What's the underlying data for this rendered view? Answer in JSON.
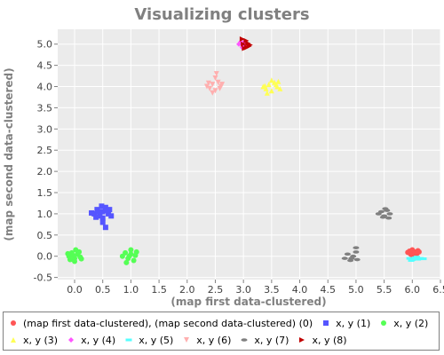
{
  "chart_data": {
    "type": "scatter",
    "title": "Visualizing clusters",
    "xlabel": "(map first data-clustered)",
    "ylabel": "(map second data-clustered)",
    "xlim": [
      -0.3,
      6.5
    ],
    "ylim": [
      -0.55,
      5.35
    ],
    "xticks": [
      "0.0",
      "0.5",
      "1.0",
      "1.5",
      "2.0",
      "2.5",
      "3.0",
      "3.5",
      "4.0",
      "4.5",
      "5.0",
      "5.5",
      "6.0",
      "6.5"
    ],
    "yticks": [
      "-0.5",
      "0.0",
      "0.5",
      "1.0",
      "1.5",
      "2.0",
      "2.5",
      "3.0",
      "3.5",
      "4.0",
      "4.5",
      "5.0"
    ],
    "grid": true,
    "legend_position": "bottom",
    "series": [
      {
        "name": "(map first data-clustered), (map second data-clustered) (0)",
        "color": "#ff5555",
        "marker": "circle",
        "points": [
          [
            5.95,
            0.12
          ],
          [
            6.0,
            0.15
          ],
          [
            6.05,
            0.1
          ],
          [
            6.1,
            0.13
          ],
          [
            5.97,
            0.05
          ],
          [
            6.03,
            0.08
          ],
          [
            6.08,
            0.06
          ],
          [
            5.92,
            0.09
          ],
          [
            6.0,
            0.02
          ],
          [
            6.12,
            0.1
          ]
        ]
      },
      {
        "name": "x, y (1)",
        "color": "#5555ff",
        "marker": "square",
        "points": [
          [
            0.35,
            1.0
          ],
          [
            0.4,
            1.1
          ],
          [
            0.45,
            0.95
          ],
          [
            0.5,
            1.05
          ],
          [
            0.55,
            1.15
          ],
          [
            0.6,
            1.0
          ],
          [
            0.65,
            0.95
          ],
          [
            0.5,
            0.9
          ],
          [
            0.42,
            1.05
          ],
          [
            0.58,
            1.08
          ],
          [
            0.5,
            0.8
          ],
          [
            0.55,
            0.68
          ],
          [
            0.48,
            1.18
          ],
          [
            0.38,
            0.92
          ],
          [
            0.62,
            1.1
          ],
          [
            0.3,
            1.02
          ]
        ]
      },
      {
        "name": "x, y (2)",
        "color": "#55ff55",
        "marker": "circle",
        "points": [
          [
            -0.1,
            0.0
          ],
          [
            -0.05,
            0.08
          ],
          [
            0.0,
            -0.05
          ],
          [
            0.05,
            0.05
          ],
          [
            0.1,
            -0.02
          ],
          [
            -0.08,
            -0.08
          ],
          [
            0.02,
            0.15
          ],
          [
            0.0,
            -0.12
          ],
          [
            0.08,
            0.1
          ],
          [
            -0.03,
            0.02
          ],
          [
            0.85,
            0.0
          ],
          [
            0.9,
            0.08
          ],
          [
            0.95,
            -0.05
          ],
          [
            1.0,
            0.05
          ],
          [
            1.05,
            -0.1
          ],
          [
            1.1,
            0.1
          ],
          [
            0.92,
            -0.15
          ],
          [
            1.0,
            0.15
          ],
          [
            0.97,
            0.0
          ],
          [
            1.08,
            0.02
          ],
          [
            -0.12,
            0.06
          ],
          [
            0.12,
            -0.06
          ]
        ]
      },
      {
        "name": "x, y (3)",
        "color": "#ffff55",
        "marker": "triangle-up",
        "points": [
          [
            3.35,
            4.0
          ],
          [
            3.4,
            3.95
          ],
          [
            3.45,
            4.05
          ],
          [
            3.5,
            3.9
          ],
          [
            3.55,
            4.1
          ],
          [
            3.6,
            4.0
          ],
          [
            3.65,
            3.95
          ],
          [
            3.5,
            4.15
          ],
          [
            3.42,
            3.85
          ],
          [
            3.58,
            4.05
          ],
          [
            3.62,
            4.12
          ],
          [
            3.38,
            4.02
          ]
        ]
      },
      {
        "name": "x, y (4)",
        "color": "#ff55ff",
        "marker": "diamond",
        "points": [
          [
            2.95,
            5.05
          ],
          [
            3.0,
            4.95
          ],
          [
            3.05,
            4.98
          ],
          [
            2.92,
            5.0
          ],
          [
            3.02,
            5.06
          ],
          [
            2.98,
            4.92
          ]
        ]
      },
      {
        "name": "x, y (5)",
        "color": "#55ffff",
        "marker": "rect-h",
        "points": [
          [
            5.95,
            -0.05
          ],
          [
            6.0,
            -0.08
          ],
          [
            6.05,
            -0.04
          ],
          [
            6.1,
            -0.07
          ],
          [
            6.15,
            -0.05
          ],
          [
            5.98,
            -0.1
          ],
          [
            6.08,
            -0.02
          ],
          [
            6.2,
            -0.06
          ]
        ]
      },
      {
        "name": "x, y (6)",
        "color": "#ffafaf",
        "marker": "triangle-down",
        "points": [
          [
            2.35,
            4.0
          ],
          [
            2.4,
            3.95
          ],
          [
            2.45,
            4.05
          ],
          [
            2.5,
            3.9
          ],
          [
            2.55,
            4.1
          ],
          [
            2.6,
            4.0
          ],
          [
            2.5,
            4.2
          ],
          [
            2.45,
            3.85
          ],
          [
            2.38,
            4.08
          ],
          [
            2.58,
            3.95
          ],
          [
            2.52,
            4.3
          ],
          [
            2.62,
            4.05
          ]
        ]
      },
      {
        "name": "x, y (7)",
        "color": "#808080",
        "marker": "ellipse",
        "points": [
          [
            4.8,
            -0.05
          ],
          [
            4.85,
            0.05
          ],
          [
            4.9,
            -0.1
          ],
          [
            4.95,
            0.0
          ],
          [
            5.0,
            0.1
          ],
          [
            5.0,
            0.2
          ],
          [
            4.92,
            -0.05
          ],
          [
            5.02,
            -0.08
          ],
          [
            5.4,
            1.0
          ],
          [
            5.45,
            1.05
          ],
          [
            5.5,
            0.95
          ],
          [
            5.55,
            1.08
          ],
          [
            5.6,
            1.0
          ],
          [
            5.48,
            0.92
          ],
          [
            5.52,
            1.12
          ],
          [
            5.58,
            0.9
          ]
        ]
      },
      {
        "name": "x, y (8)",
        "color": "#c00000",
        "marker": "triangle-right",
        "points": [
          [
            3.0,
            5.0
          ],
          [
            3.05,
            5.08
          ],
          [
            3.1,
            4.95
          ],
          [
            3.02,
            4.9
          ],
          [
            3.08,
            5.02
          ],
          [
            3.12,
            4.98
          ],
          [
            2.98,
            5.12
          ],
          [
            3.06,
            4.92
          ]
        ]
      }
    ]
  }
}
